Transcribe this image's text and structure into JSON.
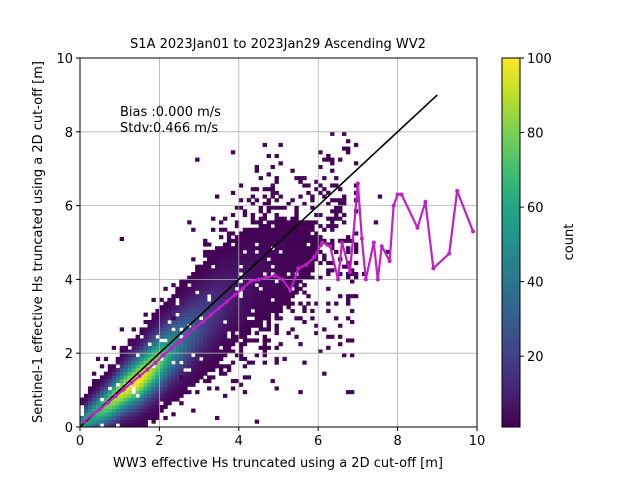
{
  "chart_data": {
    "type": "heatmap",
    "title": "S1A 2023Jan01 to 2023Jan29 Ascending WV2",
    "xlabel": "WW3 effective Hs truncated using a 2D cut-off [m]",
    "ylabel": "Sentinel-1 effective Hs truncated using a 2D cut-off [m]",
    "xlim": [
      0,
      10
    ],
    "ylim": [
      0,
      10
    ],
    "x_ticks": [
      "0",
      "2",
      "4",
      "6",
      "8",
      "10"
    ],
    "y_ticks": [
      "0",
      "2",
      "4",
      "6",
      "8",
      "10"
    ],
    "grid": true,
    "annotations": [
      "Bias :0.000 m/s",
      "Stdv:0.466 m/s"
    ],
    "colorbar": {
      "label": "count",
      "range": [
        1,
        100
      ],
      "ticks": [
        "20",
        "40",
        "60",
        "80",
        "100"
      ],
      "colormap": "viridis"
    },
    "reference_line": {
      "x": [
        0,
        9
      ],
      "y": [
        0,
        9
      ],
      "color": "#000000"
    },
    "mean_curve": {
      "color": "#c020c8",
      "x": [
        0.1,
        0.3,
        0.5,
        0.7,
        0.9,
        1.1,
        1.3,
        1.5,
        1.7,
        1.9,
        2.1,
        2.3,
        2.5,
        2.7,
        2.9,
        3.1,
        3.3,
        3.5,
        3.7,
        3.9,
        4.1,
        4.3,
        4.5,
        4.7,
        4.9,
        5.1,
        5.3,
        5.5,
        5.7,
        5.9,
        6.1,
        6.3,
        6.5,
        6.6,
        6.8,
        7.0,
        7.1,
        7.2,
        7.4,
        7.5,
        7.6,
        7.8,
        7.9,
        8.0,
        8.1,
        8.5,
        8.7,
        8.9,
        9.3,
        9.5,
        9.9
      ],
      "y": [
        0.15,
        0.32,
        0.48,
        0.66,
        0.84,
        1.02,
        1.2,
        1.38,
        1.56,
        1.74,
        1.95,
        2.12,
        2.3,
        2.5,
        2.7,
        2.85,
        3.05,
        3.22,
        3.4,
        3.58,
        3.75,
        3.95,
        4.0,
        4.05,
        4.1,
        4.0,
        3.7,
        4.3,
        4.4,
        4.6,
        5.0,
        4.9,
        4.0,
        5.0,
        4.2,
        6.6,
        5.1,
        4.0,
        5.0,
        4.0,
        4.9,
        4.5,
        6.0,
        6.3,
        6.3,
        5.4,
        6.1,
        4.3,
        4.7,
        6.4,
        5.3
      ]
    },
    "density": {
      "value_meaning": "bin count",
      "cells_description": "2D histogram of WW3 vs Sentinel-1 Hs",
      "ridge": [
        [
          0.3,
          0.3,
          60
        ],
        [
          0.7,
          0.6,
          80
        ],
        [
          1.1,
          1.0,
          95
        ],
        [
          1.5,
          1.3,
          100
        ],
        [
          1.9,
          1.7,
          85
        ],
        [
          2.3,
          2.1,
          55
        ],
        [
          2.7,
          2.5,
          35
        ],
        [
          3.1,
          2.9,
          22
        ],
        [
          3.5,
          3.3,
          14
        ],
        [
          3.9,
          3.7,
          8
        ],
        [
          4.3,
          4.0,
          5
        ],
        [
          4.8,
          4.3,
          3
        ],
        [
          5.4,
          4.6,
          2
        ],
        [
          6.0,
          4.9,
          1
        ]
      ]
    }
  }
}
